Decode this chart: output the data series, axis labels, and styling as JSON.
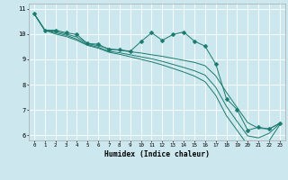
{
  "xlabel": "Humidex (Indice chaleur)",
  "background_color": "#cce8ee",
  "grid_color": "#ffffff",
  "line_color": "#1a7a6e",
  "xlim": [
    -0.5,
    23.5
  ],
  "ylim": [
    5.8,
    11.2
  ],
  "yticks": [
    6,
    7,
    8,
    9,
    10,
    11
  ],
  "xticks": [
    0,
    1,
    2,
    3,
    4,
    5,
    6,
    7,
    8,
    9,
    10,
    11,
    12,
    13,
    14,
    15,
    16,
    17,
    18,
    19,
    20,
    21,
    22,
    23
  ],
  "series": [
    {
      "x": [
        0,
        1,
        2,
        3,
        4,
        5,
        6,
        7,
        8,
        9,
        10,
        11,
        12,
        13,
        14,
        15,
        16,
        17,
        18,
        19,
        20,
        21,
        22,
        23
      ],
      "y": [
        10.8,
        10.15,
        10.15,
        10.05,
        9.98,
        9.62,
        9.6,
        9.38,
        9.38,
        9.32,
        9.7,
        10.05,
        9.75,
        9.98,
        10.08,
        9.72,
        9.52,
        8.82,
        7.45,
        7.02,
        6.2,
        6.32,
        6.25,
        6.48
      ],
      "marker": "D",
      "markersize": 2.5
    },
    {
      "x": [
        0,
        1,
        2,
        3,
        4,
        5,
        6,
        7,
        8,
        9,
        10,
        11,
        12,
        13,
        14,
        15,
        16,
        17,
        18,
        19,
        20,
        21,
        22,
        23
      ],
      "y": [
        10.8,
        10.15,
        10.1,
        10.0,
        9.88,
        9.62,
        9.54,
        9.42,
        9.36,
        9.3,
        9.25,
        9.18,
        9.12,
        9.04,
        8.96,
        8.88,
        8.75,
        8.35,
        7.7,
        7.1,
        6.5,
        6.28,
        6.25,
        6.48
      ],
      "marker": null,
      "markersize": 0
    },
    {
      "x": [
        0,
        1,
        2,
        3,
        4,
        5,
        6,
        7,
        8,
        9,
        10,
        11,
        12,
        13,
        14,
        15,
        16,
        17,
        18,
        19,
        20,
        21,
        22,
        23
      ],
      "y": [
        10.8,
        10.15,
        10.05,
        9.95,
        9.8,
        9.58,
        9.48,
        9.32,
        9.26,
        9.18,
        9.1,
        9.02,
        8.92,
        8.8,
        8.68,
        8.55,
        8.38,
        7.9,
        7.15,
        6.55,
        5.98,
        5.9,
        6.08,
        6.46
      ],
      "marker": null,
      "markersize": 0
    },
    {
      "x": [
        0,
        1,
        2,
        3,
        4,
        5,
        6,
        7,
        8,
        9,
        10,
        11,
        12,
        13,
        14,
        15,
        16,
        17,
        18,
        19,
        20,
        21,
        22,
        23
      ],
      "y": [
        10.8,
        10.15,
        10.0,
        9.9,
        9.75,
        9.55,
        9.44,
        9.28,
        9.2,
        9.1,
        9.0,
        8.9,
        8.78,
        8.64,
        8.5,
        8.34,
        8.12,
        7.58,
        6.78,
        6.2,
        5.62,
        5.6,
        5.78,
        6.42
      ],
      "marker": null,
      "markersize": 0
    }
  ]
}
